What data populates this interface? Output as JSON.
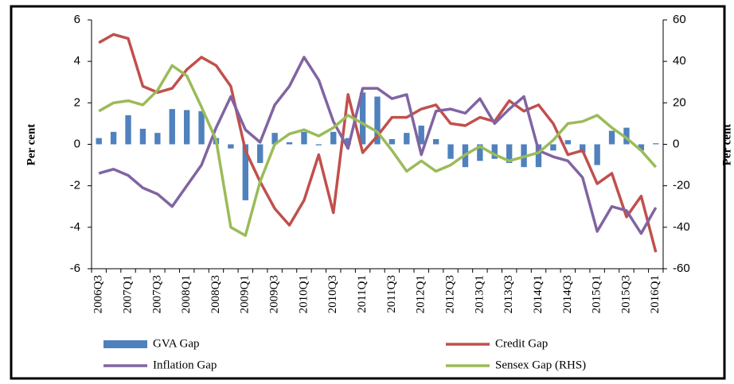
{
  "chart_data": {
    "type": "bar",
    "y_label": "Per cent",
    "y2_label": "Per cent",
    "categories": [
      "2006Q3",
      null,
      "2007Q1",
      null,
      "2007Q3",
      null,
      "2008Q1",
      null,
      "2008Q3",
      null,
      "2009Q1",
      null,
      "2009Q3",
      null,
      "2010Q1",
      null,
      "2010Q3",
      null,
      "2011Q1",
      null,
      "2011Q3",
      null,
      "2012Q1",
      null,
      "2012Q3",
      null,
      "2013Q1",
      null,
      "2013Q3",
      null,
      "2014Q1",
      null,
      "2014Q3",
      null,
      "2015Q1",
      null,
      "2015Q3",
      null,
      "2016Q1"
    ],
    "series": [
      {
        "name": "GVA Gap",
        "type": "bar",
        "color": "#4f81bd",
        "values": [
          0.3,
          0.6,
          1.4,
          0.75,
          0.55,
          1.7,
          1.65,
          1.6,
          0.3,
          -0.2,
          -2.7,
          -0.9,
          0.55,
          0.1,
          0.6,
          -0.05,
          0.6,
          0.3,
          2.5,
          2.3,
          0.25,
          0.55,
          0.9,
          0.25,
          -0.7,
          -1.1,
          -0.8,
          -0.7,
          -0.9,
          -1.1,
          -1.1,
          -0.3,
          0.2,
          -0.4,
          -1.0,
          0.65,
          0.8,
          -0.3,
          0.05
        ]
      },
      {
        "name": "Credit Gap",
        "type": "line",
        "color": "#c0504d",
        "values": [
          4.9,
          5.3,
          5.1,
          2.8,
          2.5,
          2.7,
          3.6,
          4.2,
          3.8,
          2.8,
          -0.3,
          -1.8,
          -3.1,
          -3.9,
          -2.7,
          -0.5,
          -3.3,
          2.4,
          -0.4,
          0.4,
          1.3,
          1.3,
          1.7,
          1.9,
          1.0,
          0.9,
          1.3,
          1.1,
          2.1,
          1.6,
          1.9,
          1.0,
          -0.5,
          -0.3,
          -1.9,
          -1.4,
          -3.5,
          -2.5,
          -5.2
        ]
      },
      {
        "name": "Inflation Gap",
        "type": "line",
        "color": "#8064a2",
        "values": [
          -1.4,
          -1.2,
          -1.5,
          -2.1,
          -2.4,
          -3.0,
          -2.0,
          -1.0,
          0.8,
          2.3,
          0.7,
          0.1,
          1.9,
          2.8,
          4.2,
          3.1,
          1.1,
          -0.2,
          2.7,
          2.7,
          2.2,
          2.4,
          -0.5,
          1.6,
          1.7,
          1.5,
          2.2,
          1.0,
          1.7,
          2.3,
          -0.3,
          -0.6,
          -0.8,
          -1.6,
          -4.2,
          -3.0,
          -3.2,
          -4.3,
          -3.05
        ]
      },
      {
        "name": "Sensex Gap (RHS)",
        "type": "line",
        "color": "#9bbb59",
        "axis": "y2",
        "values": [
          16,
          20,
          21,
          19,
          26,
          38,
          33,
          18,
          2,
          -40,
          -44,
          -18,
          0,
          5,
          7,
          4,
          8,
          14,
          10,
          6,
          -3,
          -13,
          -8,
          -13,
          -10,
          -5,
          -1,
          -5,
          -8,
          -6,
          -4,
          2,
          10,
          11,
          14,
          8,
          3,
          -3,
          -11
        ]
      }
    ],
    "ylim": [
      -6,
      6
    ],
    "yticks": [
      -6,
      -4,
      -2,
      0,
      2,
      4,
      6
    ],
    "y2lim": [
      -60,
      60
    ],
    "y2ticks": [
      -60,
      -40,
      -20,
      0,
      20,
      40,
      60
    ],
    "legend": "bottom"
  }
}
